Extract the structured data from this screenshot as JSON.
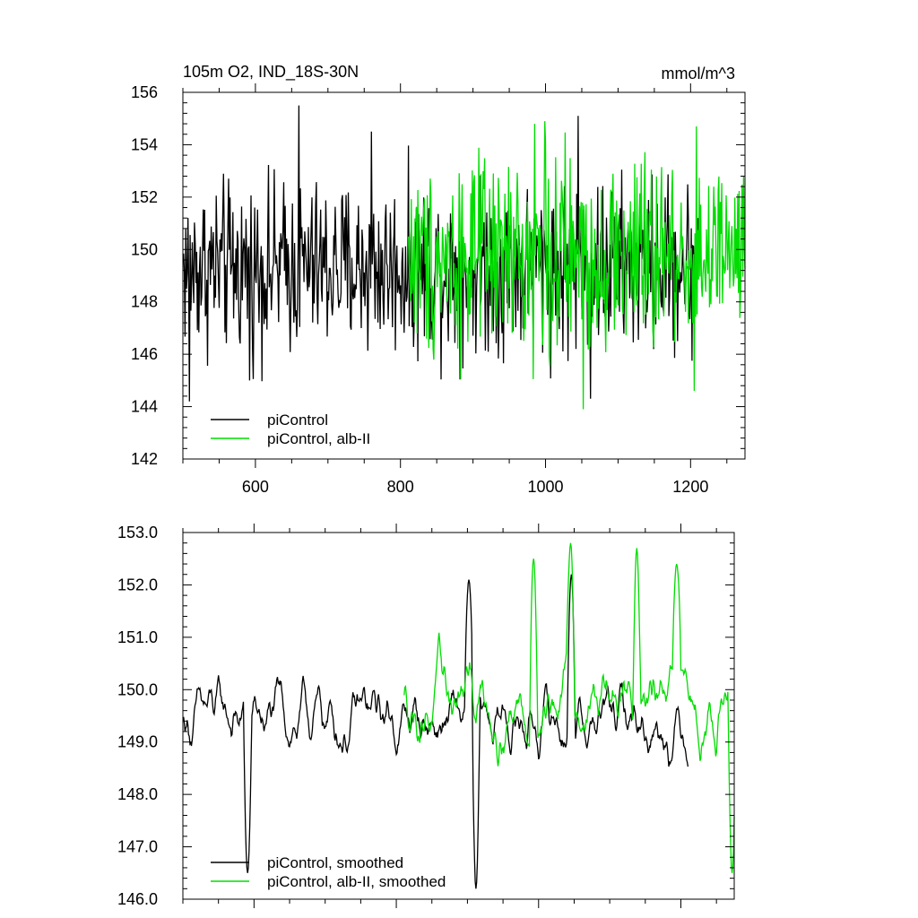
{
  "chart_data": [
    {
      "type": "line",
      "title": "105m O2, IND_18S-30N",
      "units": "mmol/m^3",
      "xlim": [
        500,
        1275
      ],
      "ylim": [
        142,
        156
      ],
      "xticks": [
        600,
        800,
        1000,
        1200
      ],
      "xtick_labels": [
        "600",
        "800",
        "1000",
        "1200"
      ],
      "yticks": [
        142,
        144,
        146,
        148,
        150,
        152,
        154,
        156
      ],
      "ytick_labels": [
        "142",
        "144",
        "146",
        "148",
        "150",
        "152",
        "154",
        "156"
      ],
      "legend_position": "bottom-left",
      "series": [
        {
          "name": "piControl",
          "color": "#000000",
          "x_start": 501,
          "x_end": 1210,
          "mean": 149.3,
          "amplitude": 1.6,
          "extremes": [
            [
              509,
              144.2
            ],
            [
              592,
              145.0
            ],
            [
              660,
              155.5
            ],
            [
              760,
              154.5
            ],
            [
              1045,
              155.1
            ],
            [
              1062,
              144.3
            ]
          ]
        },
        {
          "name": "piControl, alb-II",
          "color": "#00dd00",
          "x_start": 811,
          "x_end": 1275,
          "mean": 149.7,
          "amplitude": 1.8,
          "extremes": [
            [
              985,
              154.8
            ],
            [
              999,
              154.9
            ],
            [
              1052,
              143.9
            ],
            [
              1205,
              144.6
            ],
            [
              1208,
              154.7
            ]
          ]
        }
      ]
    },
    {
      "type": "line",
      "xlim": [
        500,
        1275
      ],
      "ylim": [
        146,
        153
      ],
      "xticks": [
        600,
        800,
        1000,
        1200
      ],
      "yticks": [
        146,
        147,
        148,
        149,
        150,
        151,
        152,
        153
      ],
      "ytick_labels": [
        "146.0",
        "147.0",
        "148.0",
        "149.0",
        "150.0",
        "151.0",
        "152.0",
        "153.0"
      ],
      "legend_position": "bottom-left",
      "series": [
        {
          "name": "piControl, smoothed",
          "color": "#000000",
          "x_start": 501,
          "x_end": 1210,
          "mean": 149.4,
          "amplitude": 0.85,
          "extremes": [
            [
              591,
              146.5
            ],
            [
              902,
              152.1
            ],
            [
              912,
              146.2
            ],
            [
              1046,
              152.2
            ]
          ]
        },
        {
          "name": "piControl, alb-II, smoothed",
          "color": "#00dd00",
          "x_start": 811,
          "x_end": 1275,
          "mean": 149.8,
          "amplitude": 0.95,
          "extremes": [
            [
              993,
              152.5
            ],
            [
              1045,
              152.8
            ],
            [
              1138,
              152.7
            ],
            [
              1194,
              152.4
            ],
            [
              1272,
              146.5
            ]
          ]
        }
      ]
    }
  ]
}
